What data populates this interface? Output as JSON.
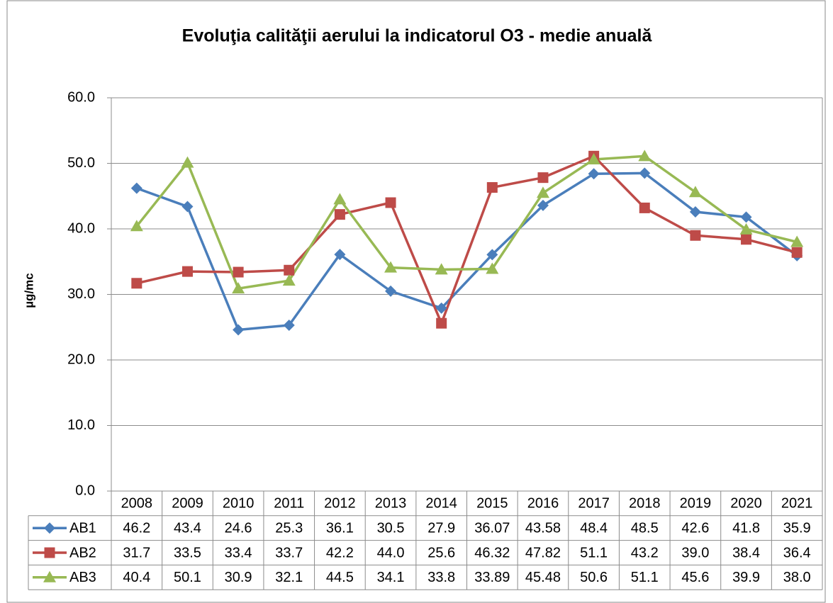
{
  "chart_data": {
    "type": "line",
    "title": "Evoluţia calităţii aerului la indicatorul O3 - medie anuală",
    "y_label": "µg/mc",
    "categories": [
      "2008",
      "2009",
      "2010",
      "2011",
      "2012",
      "2013",
      "2014",
      "2015",
      "2016",
      "2017",
      "2018",
      "2019",
      "2020",
      "2021"
    ],
    "series": [
      {
        "name": "AB1",
        "color": "#4a7ebb",
        "marker": "diamond",
        "values": [
          46.2,
          43.4,
          24.6,
          25.3,
          36.1,
          30.5,
          27.9,
          36.07,
          43.58,
          48.4,
          48.5,
          42.6,
          41.8,
          35.9
        ],
        "value_labels": [
          "46.2",
          "43.4",
          "24.6",
          "25.3",
          "36.1",
          "30.5",
          "27.9",
          "36.07",
          "43.58",
          "48.4",
          "48.5",
          "42.6",
          "41.8",
          "35.9"
        ]
      },
      {
        "name": "AB2",
        "color": "#be4b48",
        "marker": "square",
        "values": [
          31.7,
          33.5,
          33.4,
          33.7,
          42.2,
          44,
          25.6,
          46.32,
          47.82,
          51.1,
          43.2,
          39,
          38.4,
          36.4
        ],
        "value_labels": [
          "31.7",
          "33.5",
          "33.4",
          "33.7",
          "42.2",
          "44.0",
          "25.6",
          "46.32",
          "47.82",
          "51.1",
          "43.2",
          "39.0",
          "38.4",
          "36.4"
        ]
      },
      {
        "name": "AB3",
        "color": "#98b954",
        "marker": "triangle",
        "values": [
          40.4,
          50.1,
          30.9,
          32.1,
          44.5,
          34.1,
          33.8,
          33.89,
          45.48,
          50.6,
          51.1,
          45.6,
          39.9,
          38
        ],
        "value_labels": [
          "40.4",
          "50.1",
          "30.9",
          "32.1",
          "44.5",
          "34.1",
          "33.8",
          "33.89",
          "45.48",
          "50.6",
          "51.1",
          "45.6",
          "39.9",
          "38.0"
        ]
      }
    ],
    "ylim": [
      0,
      60
    ],
    "yticks": [
      {
        "value": 0,
        "label": "0.0"
      },
      {
        "value": 10,
        "label": "10.0"
      },
      {
        "value": 20,
        "label": "20.0"
      },
      {
        "value": 30,
        "label": "30.0"
      },
      {
        "value": 40,
        "label": "40.0"
      },
      {
        "value": 50,
        "label": "50.0"
      },
      {
        "value": 60,
        "label": "60.0"
      }
    ],
    "grid": true
  }
}
